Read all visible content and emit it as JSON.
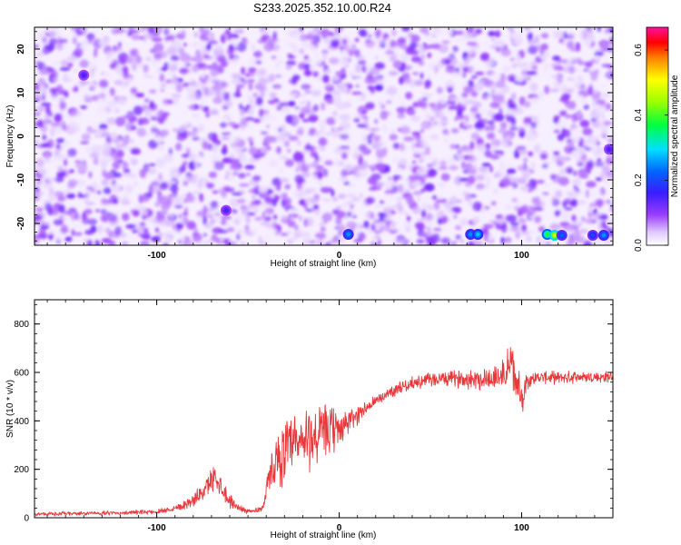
{
  "title": "S233.2025.352.10.00.R24",
  "chart_data": [
    {
      "type": "heatmap",
      "xlabel": "Height of straight line (km)",
      "ylabel": "Frequency (Hz)",
      "xlim": [
        -167,
        150
      ],
      "ylim": [
        -25,
        25
      ],
      "xticks": [
        -100,
        0,
        100
      ],
      "yticks": [
        -20,
        -10,
        0,
        10,
        20
      ],
      "colorbar": {
        "label": "Normalized spectral amplitude",
        "range": [
          0.0,
          0.67
        ],
        "ticks": [
          0.0,
          0.2,
          0.4,
          0.6
        ],
        "colormap": "rainbow (white-purple-blue-cyan-green-yellow-red-magenta)"
      },
      "hotspots": [
        {
          "x": 5,
          "y": -22.5,
          "value": 0.25
        },
        {
          "x": 72,
          "y": -22.5,
          "value": 0.25
        },
        {
          "x": 76,
          "y": -22.5,
          "value": 0.28
        },
        {
          "x": 114,
          "y": -22.5,
          "value": 0.38
        },
        {
          "x": 118,
          "y": -22.7,
          "value": 0.48
        },
        {
          "x": 122,
          "y": -22.7,
          "value": 0.22
        },
        {
          "x": 139,
          "y": -22.7,
          "value": 0.2
        },
        {
          "x": 145,
          "y": -22.7,
          "value": 0.25
        },
        {
          "x": 148,
          "y": -3,
          "value": 0.15
        },
        {
          "x": -140,
          "y": 14,
          "value": 0.15
        },
        {
          "x": -62,
          "y": -17,
          "value": 0.15
        }
      ],
      "background_level": [
        0.0,
        0.12
      ]
    },
    {
      "type": "line",
      "xlabel": "Height of straight line (km)",
      "ylabel": "SNR (10 * v/v)",
      "xlim": [
        -167,
        150
      ],
      "ylim": [
        0,
        900
      ],
      "xticks": [
        -100,
        0,
        100
      ],
      "yticks": [
        0,
        200,
        400,
        600,
        800
      ],
      "color": "#e8373a",
      "x": [
        -167,
        -140,
        -120,
        -100,
        -90,
        -80,
        -72,
        -68,
        -64,
        -60,
        -55,
        -48,
        -42,
        -38,
        -35,
        -32,
        -28,
        -24,
        -20,
        -16,
        -12,
        -8,
        -4,
        0,
        4,
        8,
        12,
        16,
        20,
        24,
        28,
        32,
        36,
        40,
        50,
        60,
        70,
        80,
        88,
        92,
        94,
        96,
        98,
        100,
        102,
        106,
        110,
        120,
        130,
        140,
        150
      ],
      "y": [
        15,
        18,
        20,
        25,
        40,
        70,
        130,
        180,
        120,
        70,
        40,
        25,
        40,
        180,
        230,
        260,
        280,
        290,
        310,
        330,
        340,
        350,
        360,
        370,
        390,
        410,
        440,
        460,
        480,
        500,
        520,
        535,
        545,
        555,
        570,
        575,
        575,
        575,
        580,
        600,
        650,
        580,
        540,
        480,
        560,
        575,
        580,
        578,
        582,
        580,
        580
      ],
      "noise": [
        8,
        8,
        8,
        10,
        15,
        25,
        45,
        55,
        45,
        30,
        15,
        10,
        15,
        60,
        100,
        120,
        130,
        140,
        140,
        140,
        130,
        120,
        100,
        80,
        60,
        45,
        35,
        30,
        25,
        25,
        25,
        25,
        25,
        25,
        30,
        30,
        40,
        50,
        60,
        80,
        110,
        90,
        80,
        60,
        50,
        25,
        25,
        25,
        25,
        25,
        25
      ]
    }
  ]
}
